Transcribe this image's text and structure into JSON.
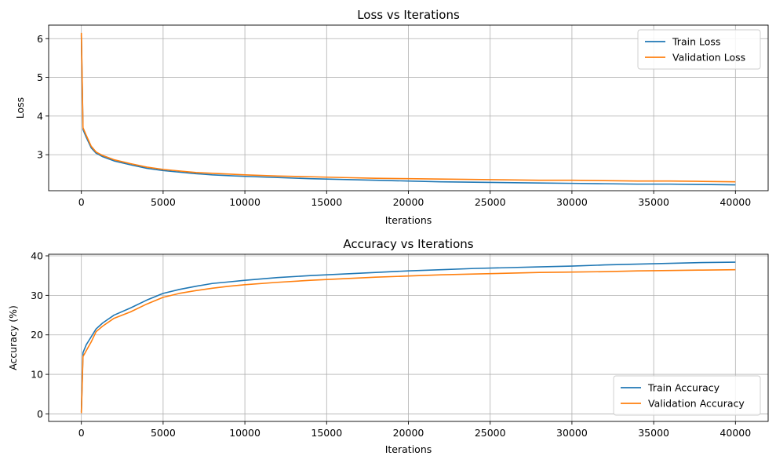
{
  "chart_data": [
    {
      "type": "line",
      "title": "Loss vs Iterations",
      "xlabel": "Iterations",
      "ylabel": "Loss",
      "xlim": [
        -2000,
        42000
      ],
      "ylim": [
        2.07,
        6.35
      ],
      "xticks": [
        0,
        5000,
        10000,
        15000,
        20000,
        25000,
        30000,
        35000,
        40000
      ],
      "yticks": [
        3,
        4,
        5,
        6
      ],
      "grid": true,
      "legend_position": "upper-right",
      "series": [
        {
          "name": "Train Loss",
          "color": "#1f77b4",
          "points": [
            [
              0,
              6.1
            ],
            [
              100,
              3.65
            ],
            [
              300,
              3.45
            ],
            [
              600,
              3.18
            ],
            [
              900,
              3.04
            ],
            [
              1300,
              2.95
            ],
            [
              2000,
              2.84
            ],
            [
              3000,
              2.74
            ],
            [
              4000,
              2.65
            ],
            [
              5000,
              2.59
            ],
            [
              6000,
              2.55
            ],
            [
              7000,
              2.51
            ],
            [
              8000,
              2.48
            ],
            [
              9000,
              2.46
            ],
            [
              10000,
              2.44
            ],
            [
              12000,
              2.41
            ],
            [
              14000,
              2.38
            ],
            [
              16000,
              2.36
            ],
            [
              18000,
              2.34
            ],
            [
              20000,
              2.32
            ],
            [
              22000,
              2.3
            ],
            [
              24000,
              2.29
            ],
            [
              26000,
              2.28
            ],
            [
              28000,
              2.27
            ],
            [
              30000,
              2.26
            ],
            [
              32000,
              2.25
            ],
            [
              34000,
              2.24
            ],
            [
              36000,
              2.24
            ],
            [
              38000,
              2.23
            ],
            [
              40000,
              2.22
            ]
          ]
        },
        {
          "name": "Validation Loss",
          "color": "#ff7f0e",
          "points": [
            [
              0,
              6.15
            ],
            [
              100,
              3.7
            ],
            [
              300,
              3.5
            ],
            [
              600,
              3.22
            ],
            [
              900,
              3.07
            ],
            [
              1300,
              2.98
            ],
            [
              2000,
              2.87
            ],
            [
              3000,
              2.77
            ],
            [
              4000,
              2.68
            ],
            [
              5000,
              2.62
            ],
            [
              6000,
              2.58
            ],
            [
              7000,
              2.54
            ],
            [
              8000,
              2.52
            ],
            [
              9000,
              2.5
            ],
            [
              10000,
              2.48
            ],
            [
              12000,
              2.45
            ],
            [
              14000,
              2.43
            ],
            [
              16000,
              2.41
            ],
            [
              18000,
              2.39
            ],
            [
              20000,
              2.38
            ],
            [
              22000,
              2.37
            ],
            [
              24000,
              2.36
            ],
            [
              26000,
              2.35
            ],
            [
              28000,
              2.34
            ],
            [
              30000,
              2.34
            ],
            [
              32000,
              2.33
            ],
            [
              34000,
              2.32
            ],
            [
              36000,
              2.32
            ],
            [
              38000,
              2.31
            ],
            [
              40000,
              2.3
            ]
          ]
        }
      ]
    },
    {
      "type": "line",
      "title": "Accuracy vs Iterations",
      "xlabel": "Iterations",
      "ylabel": "Accuracy (%)",
      "xlim": [
        -2000,
        42000
      ],
      "ylim": [
        -1.9,
        40.4
      ],
      "xticks": [
        0,
        5000,
        10000,
        15000,
        20000,
        25000,
        30000,
        35000,
        40000
      ],
      "yticks": [
        0,
        10,
        20,
        30,
        40
      ],
      "grid": true,
      "legend_position": "lower-right",
      "series": [
        {
          "name": "Train Accuracy",
          "color": "#1f77b4",
          "points": [
            [
              0,
              0.5
            ],
            [
              100,
              15.5
            ],
            [
              300,
              17.5
            ],
            [
              600,
              19.5
            ],
            [
              900,
              21.5
            ],
            [
              1300,
              23.0
            ],
            [
              2000,
              25.0
            ],
            [
              3000,
              26.8
            ],
            [
              4000,
              28.8
            ],
            [
              5000,
              30.5
            ],
            [
              6000,
              31.5
            ],
            [
              7000,
              32.3
            ],
            [
              8000,
              33.0
            ],
            [
              9000,
              33.4
            ],
            [
              10000,
              33.8
            ],
            [
              12000,
              34.5
            ],
            [
              14000,
              35.0
            ],
            [
              16000,
              35.4
            ],
            [
              18000,
              35.8
            ],
            [
              20000,
              36.2
            ],
            [
              22000,
              36.5
            ],
            [
              24000,
              36.8
            ],
            [
              26000,
              37.0
            ],
            [
              28000,
              37.2
            ],
            [
              30000,
              37.4
            ],
            [
              32000,
              37.7
            ],
            [
              34000,
              37.9
            ],
            [
              36000,
              38.1
            ],
            [
              38000,
              38.3
            ],
            [
              40000,
              38.4
            ]
          ]
        },
        {
          "name": "Validation Accuracy",
          "color": "#ff7f0e",
          "points": [
            [
              0,
              0.2
            ],
            [
              100,
              14.5
            ],
            [
              300,
              16.0
            ],
            [
              600,
              18.2
            ],
            [
              900,
              20.8
            ],
            [
              1300,
              22.2
            ],
            [
              2000,
              24.2
            ],
            [
              3000,
              25.8
            ],
            [
              4000,
              27.8
            ],
            [
              5000,
              29.5
            ],
            [
              6000,
              30.5
            ],
            [
              7000,
              31.2
            ],
            [
              8000,
              31.8
            ],
            [
              9000,
              32.3
            ],
            [
              10000,
              32.7
            ],
            [
              12000,
              33.3
            ],
            [
              14000,
              33.8
            ],
            [
              16000,
              34.2
            ],
            [
              18000,
              34.6
            ],
            [
              20000,
              34.9
            ],
            [
              22000,
              35.2
            ],
            [
              24000,
              35.4
            ],
            [
              26000,
              35.6
            ],
            [
              28000,
              35.8
            ],
            [
              30000,
              35.9
            ],
            [
              32000,
              36.0
            ],
            [
              34000,
              36.2
            ],
            [
              36000,
              36.3
            ],
            [
              38000,
              36.4
            ],
            [
              40000,
              36.5
            ]
          ]
        }
      ]
    }
  ]
}
